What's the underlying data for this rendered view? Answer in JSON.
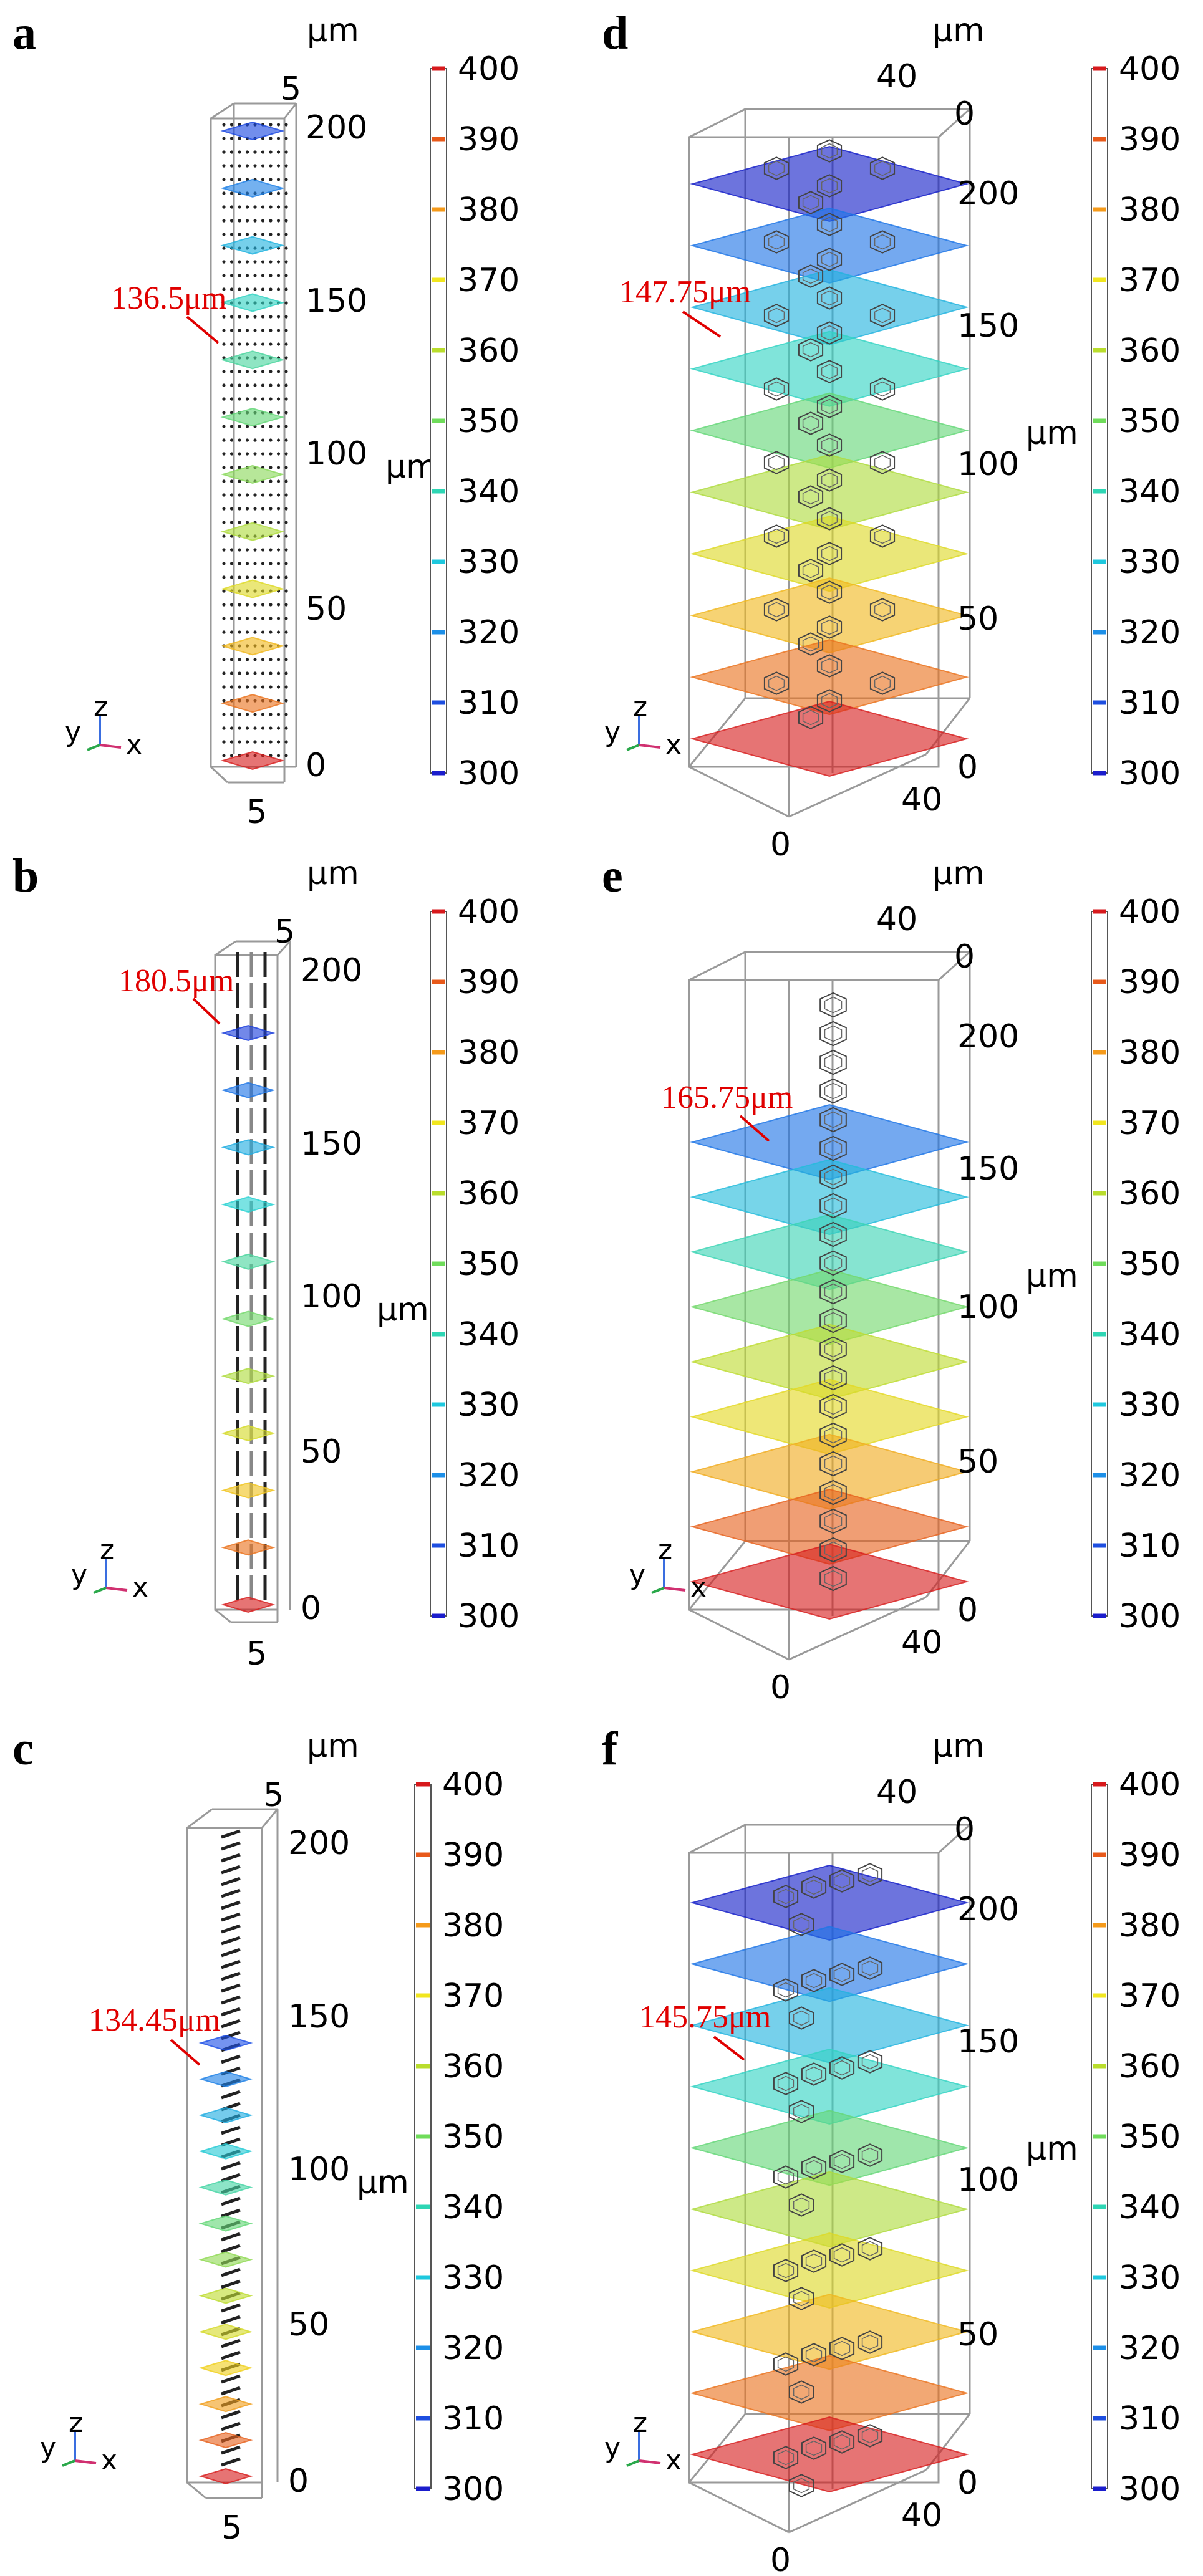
{
  "figure": {
    "colorbar_ticks": [
      "400",
      "390",
      "380",
      "370",
      "360",
      "350",
      "340",
      "330",
      "320",
      "310",
      "300"
    ],
    "colorbar_tick_colors": [
      "#d7191c",
      "#e8591a",
      "#f59a1a",
      "#f1e61e",
      "#b9dd2c",
      "#6fdc5a",
      "#2ed6b4",
      "#1ec8de",
      "#1c8fe8",
      "#1d4ee0",
      "#1b1dcc"
    ],
    "axis_labels": {
      "x": "x",
      "y": "y",
      "z": "z"
    },
    "unit": "μm",
    "panels": [
      {
        "label": "a",
        "style": "thin",
        "annotation": "136.5μm",
        "z_ticks": [
          "0",
          "50",
          "100",
          "150",
          "200"
        ],
        "top_tick": "5",
        "bottom_tick": "5",
        "plane_values_K": [
          310,
          320,
          330,
          340,
          345,
          350,
          355,
          360,
          370,
          380,
          390,
          400
        ]
      },
      {
        "label": "b",
        "style": "thin",
        "annotation": "180.5μm",
        "z_ticks": [
          "0",
          "50",
          "100",
          "150",
          "200"
        ],
        "top_tick": "5",
        "bottom_tick": "5",
        "plane_values_K": [
          308,
          318,
          328,
          338,
          345,
          352,
          360,
          368,
          378,
          390,
          400
        ]
      },
      {
        "label": "c",
        "style": "thin",
        "annotation": "134.45μm",
        "z_ticks": [
          "0",
          "50",
          "100",
          "150",
          "200"
        ],
        "top_tick": "5",
        "bottom_tick": "5",
        "plane_values_K": [
          312,
          320,
          328,
          336,
          344,
          350,
          356,
          362,
          368,
          376,
          384,
          392,
          400
        ]
      },
      {
        "label": "d",
        "style": "wide",
        "annotation": "147.75μm",
        "z_ticks": [
          "0",
          "50",
          "100",
          "150",
          "200"
        ],
        "top_ticks": [
          "40",
          "0"
        ],
        "bottom_ticks": [
          "40",
          "0"
        ],
        "plane_values_K": [
          300,
          318,
          330,
          340,
          350,
          360,
          370,
          380,
          390,
          400
        ]
      },
      {
        "label": "e",
        "style": "wide",
        "annotation": "165.75μm",
        "z_ticks": [
          "0",
          "50",
          "100",
          "150",
          "200"
        ],
        "top_ticks": [
          "40",
          "0"
        ],
        "bottom_ticks": [
          "40",
          "0"
        ],
        "plane_values_K": [
          318,
          332,
          342,
          352,
          362,
          372,
          382,
          392,
          400
        ]
      },
      {
        "label": "f",
        "style": "wide",
        "annotation": "145.75μm",
        "z_ticks": [
          "0",
          "50",
          "100",
          "150",
          "200"
        ],
        "top_ticks": [
          "40",
          "0"
        ],
        "bottom_ticks": [
          "40",
          "0"
        ],
        "plane_values_K": [
          300,
          318,
          330,
          340,
          350,
          360,
          370,
          380,
          390,
          400
        ]
      }
    ]
  }
}
